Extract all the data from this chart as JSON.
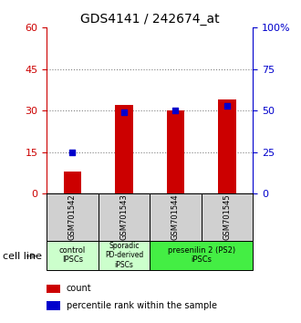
{
  "title": "GDS4141 / 242674_at",
  "samples": [
    "GSM701542",
    "GSM701543",
    "GSM701544",
    "GSM701545"
  ],
  "count_values": [
    8,
    32,
    30,
    34
  ],
  "percentile_pct": [
    25,
    49,
    50,
    53
  ],
  "left_ylim": [
    0,
    60
  ],
  "right_ylim": [
    0,
    100
  ],
  "left_yticks": [
    0,
    15,
    30,
    45,
    60
  ],
  "right_yticks": [
    0,
    25,
    50,
    75,
    100
  ],
  "right_yticklabels": [
    "0",
    "25",
    "50",
    "75",
    "100%"
  ],
  "dotted_lines": [
    15,
    30,
    45
  ],
  "bar_color": "#cc0000",
  "dot_color": "#0000cc",
  "left_axis_color": "#cc0000",
  "right_axis_color": "#0000cc",
  "cell_line_label": "cell line",
  "legend_count_label": "count",
  "legend_percentile_label": "percentile rank within the sample",
  "sample_bg_color": "#d0d0d0",
  "group1_color": "#ccffcc",
  "group2_color": "#ccffcc",
  "group3_color": "#44ee44",
  "bar_width": 0.35,
  "title_fontsize": 10,
  "tick_fontsize": 8,
  "sample_fontsize": 6,
  "group_fontsize": 6,
  "legend_fontsize": 7,
  "cell_line_fontsize": 8
}
